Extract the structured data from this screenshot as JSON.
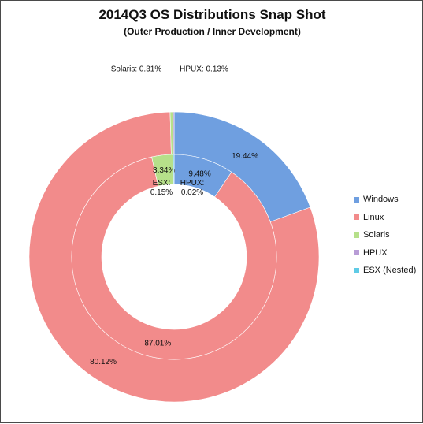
{
  "chart_data": {
    "type": "donut",
    "title": "2014Q3 OS Distributions Snap Shot",
    "subtitle": "(Outer Production / Inner Development)",
    "categories": [
      "Windows",
      "Linux",
      "Solaris",
      "HPUX",
      "ESX (Nested)"
    ],
    "colors": [
      "#6f9fe0",
      "#f28b8b",
      "#b6e08a",
      "#b89cd6",
      "#5fcbe6"
    ],
    "series": [
      {
        "name": "Outer Production",
        "values": [
          19.44,
          80.12,
          0.31,
          0.13,
          0.0
        ],
        "labels": [
          "19.44%",
          "80.12%",
          "Solaris: 0.31%",
          "HPUX: 0.13%",
          ""
        ]
      },
      {
        "name": "Inner Development",
        "values": [
          9.48,
          87.01,
          3.34,
          0.02,
          0.15
        ],
        "labels": [
          "9.48%",
          "87.01%",
          "3.34%",
          "HPUX:\n0.02%",
          "ESX:\n0.15%"
        ]
      }
    ],
    "legend_position": "right"
  }
}
